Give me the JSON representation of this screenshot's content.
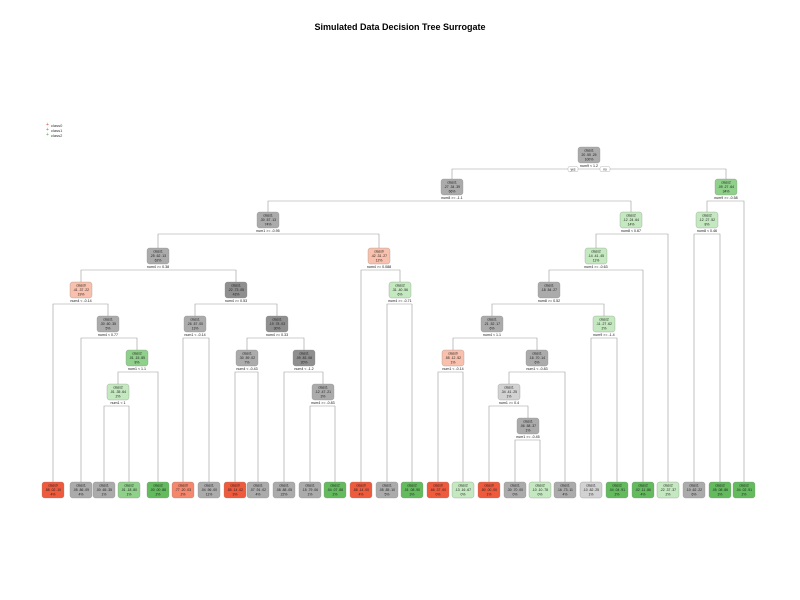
{
  "title": "Simulated Data Decision Tree Surrogate",
  "legend": [
    {
      "label": "class0",
      "symbol": "+",
      "color": "#e24a33"
    },
    {
      "label": "class1",
      "symbol": "+",
      "color": "#777777"
    },
    {
      "label": "class2",
      "symbol": "+",
      "color": "#4caf50"
    }
  ],
  "root_branch_labels": {
    "yes": "yes",
    "no": "no"
  },
  "nodes": [
    {
      "id": "n1",
      "cls": "class1",
      "probs": "20 .55 .25",
      "pct": "100%",
      "split": "num9 < 1.2",
      "tone": "c1-mid"
    },
    {
      "id": "n2",
      "cls": "class1",
      "probs": ".27 .34 .39",
      "pct": "66%",
      "split": "num8 >= -1.1",
      "tone": "c1-mid"
    },
    {
      "id": "n3",
      "cls": "class2",
      "probs": ".09 .27 .64",
      "pct": "34%",
      "split": "num9 >= -0.58",
      "tone": "c2-mid"
    },
    {
      "id": "n4",
      "cls": "class1",
      "probs": ".30 .57 .13",
      "pct": "74%",
      "split": "num1 >= -0.95",
      "tone": "c1-mid"
    },
    {
      "id": "n5",
      "cls": "class2",
      "probs": ".12 .24 .64",
      "pct": "14%",
      "split": "num8 < 0.67",
      "tone": "c2-light"
    },
    {
      "id": "n6",
      "cls": "class2",
      "probs": ".12 .27 .52",
      "pct": "8%",
      "split": "num8 < 0.46",
      "tone": "c2-light"
    },
    {
      "id": "n7",
      "cls": "class1",
      "probs": ".25 .62 .13",
      "pct": "62%",
      "split": "num4 >= 0.38",
      "tone": "c1-mid"
    },
    {
      "id": "n8",
      "cls": "class0",
      "probs": ".42 .31 .27",
      "pct": "12%",
      "split": "num4 >= 0.088",
      "tone": "c0-light"
    },
    {
      "id": "n9",
      "cls": "class2",
      "probs": ".14 .41 .45",
      "pct": "11%",
      "split": "num4 >= -0.63",
      "tone": "c2-light"
    },
    {
      "id": "n10",
      "cls": "class0",
      "probs": ".41 .37 .22",
      "pct": "19%",
      "split": "num4 < -0.14",
      "tone": "c0-light"
    },
    {
      "id": "n11",
      "cls": "class1",
      "probs": ".22 .73 .05",
      "pct": "43%",
      "split": "num4 >= 0.53",
      "tone": "c1-dark"
    },
    {
      "id": "n12",
      "cls": "class2",
      "probs": ".31 .40 .56",
      "pct": "6%",
      "split": "num4 >= -0.71",
      "tone": "c2-light"
    },
    {
      "id": "n13",
      "cls": "class1",
      "probs": ".18 .54 .27",
      "pct": "",
      "split": "num8 >= 0.52",
      "tone": "c1-mid"
    },
    {
      "id": "n14",
      "cls": "class1",
      "probs": ".30 .60 .35",
      "pct": "5%",
      "split": "num4 < 0.77",
      "tone": "c1-mid"
    },
    {
      "id": "n15",
      "cls": "class1",
      "probs": ".26 .57 .00",
      "pct": "13%",
      "split": "num1 < -0.14",
      "tone": "c1-mid"
    },
    {
      "id": "n16",
      "cls": "class1",
      "probs": ".19 .78 .03",
      "pct": "30%",
      "split": "num4 >= 0.33",
      "tone": "c1-dark"
    },
    {
      "id": "n17",
      "cls": "class1",
      "probs": ".21 .52 .17",
      "pct": "6%",
      "split": "num4 < 1.1",
      "tone": "c1-mid"
    },
    {
      "id": "n18",
      "cls": "class2",
      "probs": ".11 .27 .62",
      "pct": "2%",
      "split": "num9 >= -1.4",
      "tone": "c2-light"
    },
    {
      "id": "n19",
      "cls": "class2",
      "probs": ".01 .15 .85",
      "pct": "8%",
      "split": "num1 < 1.1",
      "tone": "c2-mid"
    },
    {
      "id": "n20",
      "cls": "class1",
      "probs": ".30 .59 .02",
      "pct": "7%",
      "split": "num4 < -0.43",
      "tone": "c1-mid"
    },
    {
      "id": "n21",
      "cls": "class1",
      "probs": ".09 .83 .08",
      "pct": "20%",
      "split": "num4 < -1.2",
      "tone": "c1-dark"
    },
    {
      "id": "n22",
      "cls": "class0",
      "probs": ".55 .12 .52",
      "pct": "1%",
      "split": "num1 < -0.14",
      "tone": "c0-light"
    },
    {
      "id": "n23",
      "cls": "class1",
      "probs": ".16 .70 .14",
      "pct": "6%",
      "split": "num1 < -0.83",
      "tone": "c1-mid"
    },
    {
      "id": "n24",
      "cls": "class2",
      "probs": ".01 .35 .64",
      "pct": "2%",
      "split": "num1 < 1",
      "tone": "c2-light"
    },
    {
      "id": "n25",
      "cls": "class1",
      "probs": ".12 .47 .21",
      "pct": "3%",
      "split": "num4 >= -0.83",
      "tone": "c1-mid"
    },
    {
      "id": "n26",
      "cls": "class1",
      "probs": ".34 .41 .25",
      "pct": "1%",
      "split": "num1 >= 0.4",
      "tone": "c1-light"
    },
    {
      "id": "n27",
      "cls": "class1",
      "probs": ".06 .58 .37",
      "pct": "1%",
      "split": "num1 >= -0.45",
      "tone": "c1-mid"
    },
    {
      "id": "L1",
      "cls": "class0",
      "probs": ".88 .02 .10",
      "pct": "4%",
      "tone": "c0-dark"
    },
    {
      "id": "L2",
      "cls": "class1",
      "probs": ".05 .86 .09",
      "pct": "4%",
      "tone": "c1-mid"
    },
    {
      "id": "L3",
      "cls": "class1",
      "probs": ".00 .65 .35",
      "pct": "1%",
      "tone": "c1-mid"
    },
    {
      "id": "L4",
      "cls": "class2",
      "probs": ".01 .18 .80",
      "pct": "1%",
      "tone": "c2-mid"
    },
    {
      "id": "L5",
      "cls": "class2",
      "probs": ".00 .00 .88",
      "pct": "2%",
      "tone": "c2-dark"
    },
    {
      "id": "L6",
      "cls": "class0",
      "probs": ".77 .20 .03",
      "pct": "2%",
      "tone": "c0-mid"
    },
    {
      "id": "L7",
      "cls": "class1",
      "probs": ".04 .96 .00",
      "pct": "11%",
      "tone": "c1-mid"
    },
    {
      "id": "L8",
      "cls": "class0",
      "probs": ".85 .14 .02",
      "pct": "3%",
      "tone": "c0-dark"
    },
    {
      "id": "L9",
      "cls": "class1",
      "probs": ".07 .91 .02",
      "pct": "4%",
      "tone": "c1-mid"
    },
    {
      "id": "L10",
      "cls": "class1",
      "probs": ".08 .88 .05",
      "pct": "22%",
      "tone": "c1-mid"
    },
    {
      "id": "L11",
      "cls": "class1",
      "probs": ".15 .79 .06",
      "pct": "1%",
      "tone": "c1-mid"
    },
    {
      "id": "L12",
      "cls": "class2",
      "probs": ".04 .07 .88",
      "pct": "2%",
      "tone": "c2-dark"
    },
    {
      "id": "L13",
      "cls": "class0",
      "probs": ".88 .14 .00",
      "pct": "4%",
      "tone": "c0-dark"
    },
    {
      "id": "L14",
      "cls": "class1",
      "probs": ".05 .85 .10",
      "pct": "5%",
      "tone": "c1-mid"
    },
    {
      "id": "L15",
      "cls": "class2",
      "probs": ".01 .08 .90",
      "pct": "3%",
      "tone": "c2-dark"
    },
    {
      "id": "L16",
      "cls": "class0",
      "probs": ".66 .37 .00",
      "pct": "0%",
      "tone": "c0-dark"
    },
    {
      "id": "L17",
      "cls": "class2",
      "probs": ".13 .16 .67",
      "pct": "0%",
      "tone": "c2-light"
    },
    {
      "id": "L18",
      "cls": "class0",
      "probs": ".80 .00 .00",
      "pct": "1%",
      "tone": "c0-dark"
    },
    {
      "id": "L19",
      "cls": "class1",
      "probs": ".30 .70 .00",
      "pct": "0%",
      "tone": "c1-mid"
    },
    {
      "id": "L20",
      "cls": "class2",
      "probs": ".10 .10 .78",
      "pct": "0%",
      "tone": "c2-light"
    },
    {
      "id": "L21",
      "cls": "class1",
      "probs": ".16 .73 .11",
      "pct": "4%",
      "tone": "c1-mid"
    },
    {
      "id": "L22",
      "cls": "class1",
      "probs": ".10 .82 .25",
      "pct": "1%",
      "tone": "c1-light"
    },
    {
      "id": "L23",
      "cls": "class2",
      "probs": ".04 .04 .91",
      "pct": "2%",
      "tone": "c2-dark"
    },
    {
      "id": "L24",
      "cls": "class2",
      "probs": ".02 .11 .86",
      "pct": "4%",
      "tone": "c2-dark"
    },
    {
      "id": "L25",
      "cls": "class2",
      "probs": ".22 .37 .37",
      "pct": "2%",
      "tone": "c2-light"
    },
    {
      "id": "L26",
      "cls": "class1",
      "probs": ".10 .62 .22",
      "pct": "6%",
      "tone": "c1-mid"
    },
    {
      "id": "L27",
      "cls": "class2",
      "probs": ".05 .08 .86",
      "pct": "3%",
      "tone": "c2-dark"
    },
    {
      "id": "L28",
      "cls": "class2",
      "probs": ".04 .02 .91",
      "pct": "2%",
      "tone": "c2-dark"
    }
  ],
  "edges": [
    [
      "n1",
      "n2"
    ],
    [
      "n1",
      "n3"
    ],
    [
      "n2",
      "n4"
    ],
    [
      "n2",
      "n5"
    ],
    [
      "n3",
      "n6"
    ],
    [
      "n3",
      "L28"
    ],
    [
      "n4",
      "n7"
    ],
    [
      "n4",
      "n8"
    ],
    [
      "n5",
      "n9"
    ],
    [
      "n5",
      "L25"
    ],
    [
      "n6",
      "L26"
    ],
    [
      "n6",
      "L27"
    ],
    [
      "n7",
      "n10"
    ],
    [
      "n7",
      "n11"
    ],
    [
      "n8",
      "L13"
    ],
    [
      "n8",
      "n12"
    ],
    [
      "n9",
      "n13"
    ],
    [
      "n9",
      "L24"
    ],
    [
      "n10",
      "L1"
    ],
    [
      "n10",
      "n14"
    ],
    [
      "n11",
      "n15"
    ],
    [
      "n11",
      "n16"
    ],
    [
      "n12",
      "L14"
    ],
    [
      "n12",
      "L15"
    ],
    [
      "n13",
      "n17"
    ],
    [
      "n13",
      "n18"
    ],
    [
      "n14",
      "L2"
    ],
    [
      "n14",
      "n19"
    ],
    [
      "n15",
      "L6"
    ],
    [
      "n15",
      "L7"
    ],
    [
      "n16",
      "n20"
    ],
    [
      "n16",
      "n21"
    ],
    [
      "n17",
      "n22"
    ],
    [
      "n17",
      "n23"
    ],
    [
      "n18",
      "L22"
    ],
    [
      "n18",
      "L23"
    ],
    [
      "n19",
      "n24"
    ],
    [
      "n19",
      "L5"
    ],
    [
      "n20",
      "L8"
    ],
    [
      "n20",
      "L9"
    ],
    [
      "n21",
      "L10"
    ],
    [
      "n21",
      "n25"
    ],
    [
      "n22",
      "L16"
    ],
    [
      "n22",
      "L17"
    ],
    [
      "n23",
      "n26"
    ],
    [
      "n23",
      "L21"
    ],
    [
      "n24",
      "L3"
    ],
    [
      "n24",
      "L4"
    ],
    [
      "n25",
      "L11"
    ],
    [
      "n25",
      "L12"
    ],
    [
      "n26",
      "L18"
    ],
    [
      "n26",
      "n27"
    ],
    [
      "n27",
      "L19"
    ],
    [
      "n27",
      "L20"
    ]
  ],
  "palette": {
    "c0-dark": "#ef5a3d",
    "c0-mid": "#f4876c",
    "c0-light": "#f9c1ad",
    "c1-dark": "#8f8f8f",
    "c1-mid": "#ababab",
    "c1-light": "#d2d2d2",
    "c2-dark": "#63bb5e",
    "c2-mid": "#8fd08a",
    "c2-light": "#c4e8bf"
  }
}
